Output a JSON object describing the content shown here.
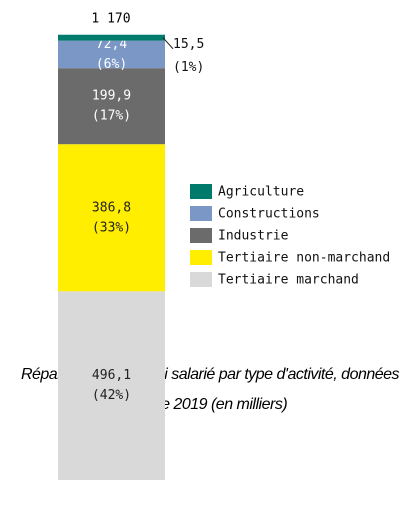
{
  "chart_data": {
    "type": "stacked_bar",
    "caption": "Répartition de l'emploi salarié par type d'activité, données Insee 2019 (en milliers)",
    "total": {
      "value": 1170,
      "label": "1 170"
    },
    "series": [
      {
        "name": "Agriculture",
        "color": "#007a6a",
        "values": [
          15.5
        ],
        "value_labels": [
          "15,5"
        ],
        "percent_labels": [
          "(1%)"
        ]
      },
      {
        "name": "Constructions",
        "color": "#7b97c6",
        "values": [
          72.4
        ],
        "value_labels": [
          "72,4"
        ],
        "percent_labels": [
          "(6%)"
        ]
      },
      {
        "name": "Industrie",
        "color": "#6b6b6b",
        "values": [
          199.9
        ],
        "value_labels": [
          "199,9"
        ],
        "percent_labels": [
          "(17%)"
        ]
      },
      {
        "name": "Tertiaire non-marchand",
        "color": "#ffee00",
        "values": [
          386.8
        ],
        "value_labels": [
          "386,8"
        ],
        "percent_labels": [
          "(33%)"
        ]
      },
      {
        "name": "Tertiaire marchand",
        "color": "#d9d9d9",
        "values": [
          496.1
        ],
        "value_labels": [
          "496,1"
        ],
        "percent_labels": [
          "(42%)"
        ]
      }
    ]
  }
}
